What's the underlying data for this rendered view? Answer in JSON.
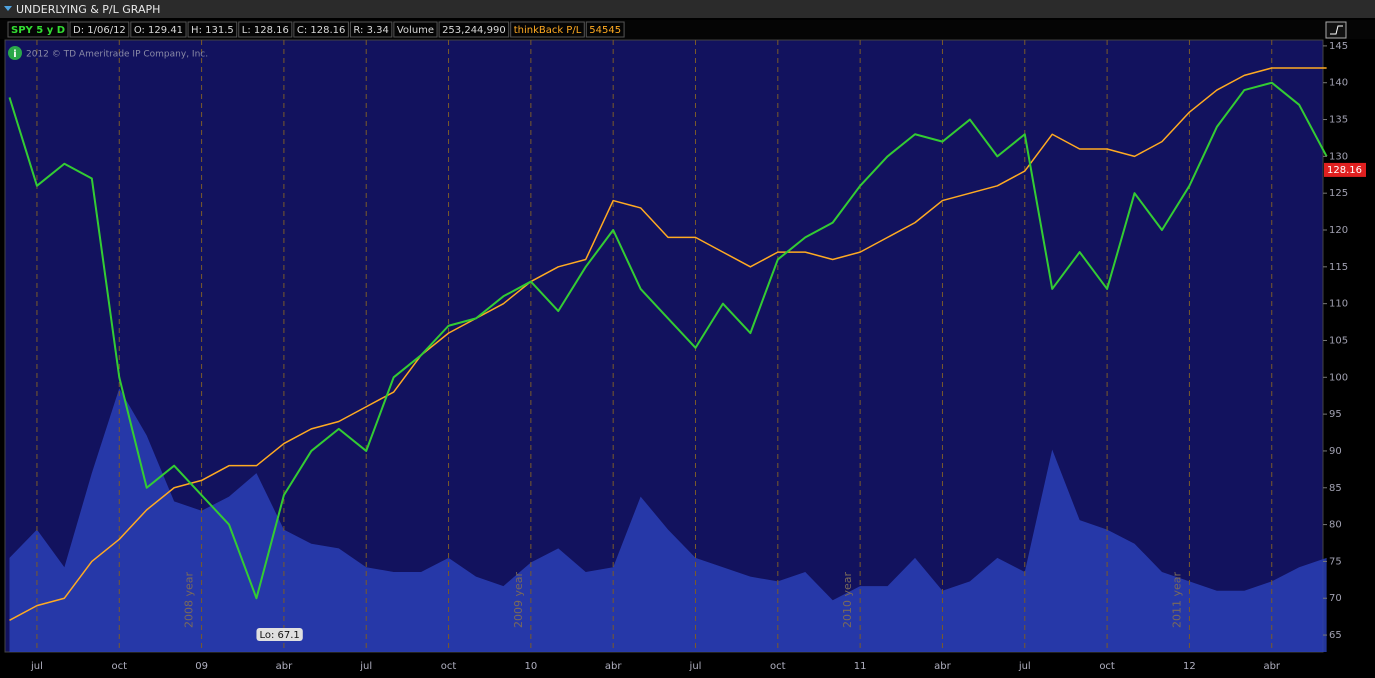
{
  "window_title": "UNDERLYING & P/L GRAPH",
  "info_bar": [
    "D: 1/06/12",
    "O: 129.41",
    "H: 131.5",
    "L: 128.16",
    "C: 128.16",
    "R: 3.34",
    "253,244,990",
    "54545"
  ],
  "copyright": "2012 © TD Ameritrade IP Company, Inc.",
  "chart_data": {
    "type": "line",
    "categories": [
      null,
      "jul",
      null,
      null,
      "oct",
      null,
      null,
      "09",
      null,
      null,
      "abr",
      null,
      null,
      "jul",
      null,
      null,
      "oct",
      null,
      null,
      "10",
      null,
      null,
      "abr",
      null,
      null,
      "jul",
      null,
      null,
      "oct",
      null,
      null,
      "11",
      null,
      null,
      "abr",
      null,
      null,
      "jul",
      null,
      null,
      "oct",
      null,
      null,
      "12",
      null,
      null,
      "abr",
      null,
      null
    ],
    "series": [
      {
        "name": "SPY 5 y D",
        "color": "#33cc33",
        "values": [
          138,
          126,
          129,
          127,
          100,
          85,
          88,
          84,
          80,
          70,
          84,
          90,
          93,
          90,
          100,
          103,
          107,
          108,
          111,
          113,
          109,
          115,
          120,
          112,
          108,
          104,
          110,
          106,
          116,
          119,
          121,
          126,
          130,
          133,
          132,
          135,
          130,
          133,
          112,
          117,
          112,
          125,
          120,
          126,
          134,
          139,
          140,
          137,
          130
        ]
      },
      {
        "name": "thinkBack P/L",
        "color": "#ffaa22",
        "values": [
          67,
          69,
          70,
          75,
          78,
          82,
          85,
          86,
          88,
          88,
          91,
          93,
          94,
          96,
          98,
          103,
          106,
          108,
          110,
          113,
          115,
          116,
          124,
          123,
          119,
          119,
          117,
          115,
          117,
          117,
          116,
          117,
          119,
          121,
          124,
          125,
          126,
          128,
          133,
          131,
          131,
          130,
          132,
          136,
          139,
          141,
          142,
          142,
          142
        ]
      },
      {
        "name": "Volume",
        "color": "#2a3fb5",
        "axis": "y2",
        "values": [
          200,
          260,
          180,
          380,
          560,
          460,
          320,
          300,
          330,
          380,
          260,
          230,
          220,
          180,
          170,
          170,
          200,
          160,
          140,
          190,
          220,
          170,
          180,
          330,
          260,
          200,
          180,
          160,
          150,
          170,
          110,
          140,
          140,
          200,
          130,
          150,
          200,
          170,
          430,
          280,
          260,
          230,
          170,
          150,
          130,
          130,
          150,
          180,
          200
        ]
      }
    ],
    "ylim": [
      62.7,
      145.8
    ],
    "yticks": [
      65,
      70,
      75,
      80,
      85,
      90,
      95,
      100,
      105,
      110,
      115,
      120,
      125,
      130,
      135,
      140,
      145
    ],
    "y2lim": [
      0,
      1300
    ],
    "price_flag": 128.16,
    "low_label": "Lo: 67.1",
    "year_markers": [
      "2008 year",
      "2009 year",
      "2010 year",
      "2011 year"
    ],
    "background": "#12125e"
  }
}
